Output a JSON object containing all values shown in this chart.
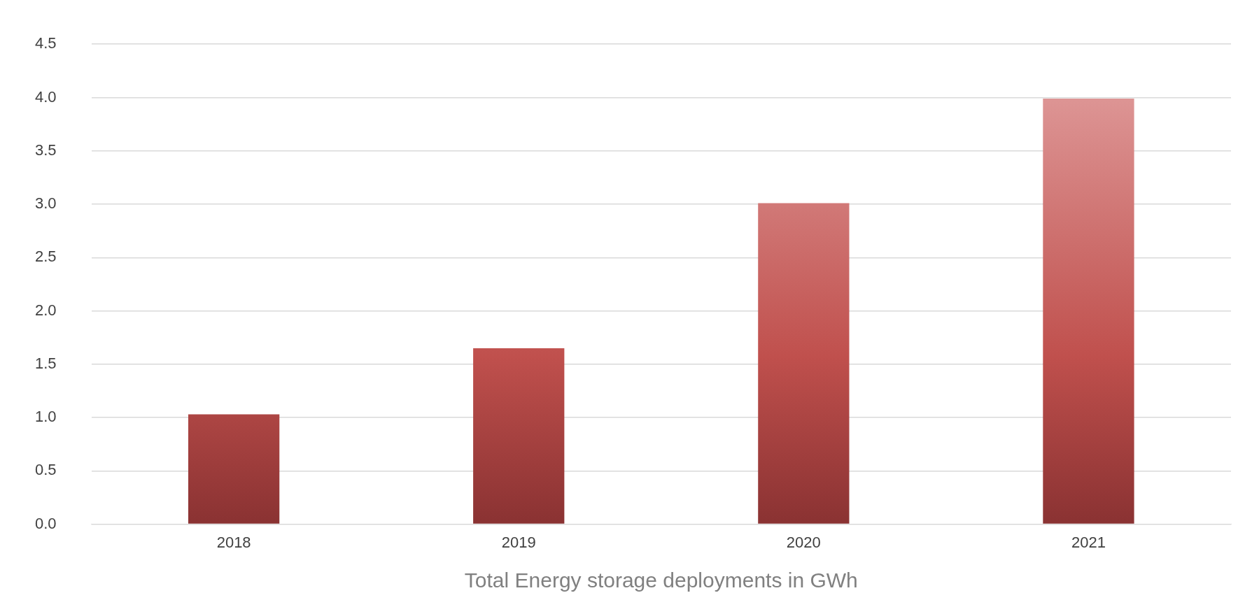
{
  "chart_data": {
    "type": "bar",
    "xlabel": "Total Energy storage deployments in GWh",
    "categories": [
      "2018",
      "2019",
      "2020",
      "2021"
    ],
    "values": [
      1.03,
      1.65,
      3.01,
      3.99
    ],
    "color": "#c0504d",
    "ylim": [
      0,
      4.5
    ],
    "yticks": [
      {
        "value": 0,
        "label": "0.0"
      },
      0.5,
      {
        "value": 1,
        "label": "1.0"
      },
      1.5,
      {
        "value": 2,
        "label": "2.0"
      },
      2.5,
      {
        "value": 3,
        "label": "3.0"
      },
      3.5,
      {
        "value": 4,
        "label": "4.0"
      },
      4.5
    ],
    "grid": "y",
    "legend": false
  }
}
